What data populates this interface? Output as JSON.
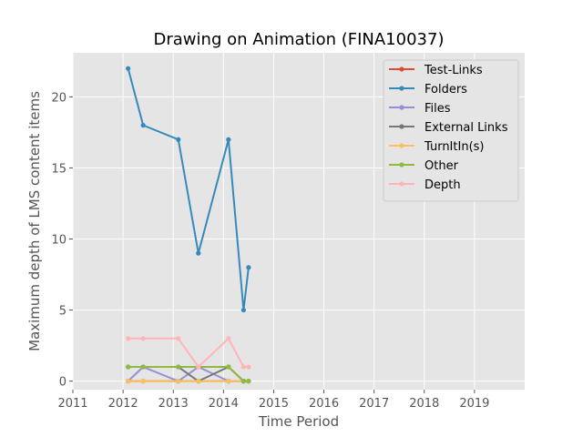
{
  "chart_data": {
    "type": "line",
    "title": "Drawing on Animation (FINA10037)",
    "xlabel": "Time Period",
    "ylabel": "Maximum depth of LMS content items",
    "xlim": [
      2011,
      2020
    ],
    "ylim": [
      -0.6,
      23.1
    ],
    "x_ticks": [
      2011,
      2012,
      2013,
      2014,
      2015,
      2016,
      2017,
      2018,
      2019
    ],
    "x_tick_labels": [
      "2011",
      "2012",
      "2013",
      "2014",
      "2015",
      "2016",
      "2017",
      "2018",
      "2019"
    ],
    "y_ticks": [
      0,
      5,
      10,
      15,
      20
    ],
    "y_tick_labels": [
      "0",
      "5",
      "10",
      "15",
      "20"
    ],
    "grid": true,
    "legend_position": "top-right",
    "x": [
      2012.1,
      2012.4,
      2013.1,
      2013.5,
      2014.1,
      2014.4,
      2014.5
    ],
    "series": [
      {
        "name": "Test-Links",
        "color": "#E24A33",
        "values": [
          0,
          0,
          0,
          0,
          0,
          0,
          0
        ]
      },
      {
        "name": "Folders",
        "color": "#348ABD",
        "values": [
          22,
          18,
          17,
          9,
          17,
          5,
          8
        ]
      },
      {
        "name": "Files",
        "color": "#988ED5",
        "values": [
          0,
          1,
          0,
          1,
          0,
          0,
          0
        ]
      },
      {
        "name": "External Links",
        "color": "#777777",
        "values": [
          1,
          1,
          1,
          0,
          1,
          0,
          0
        ]
      },
      {
        "name": "TurnItIn(s)",
        "color": "#FBC15E",
        "values": [
          0,
          0,
          0,
          0,
          0,
          0,
          0
        ]
      },
      {
        "name": "Other",
        "color": "#8EBA42",
        "values": [
          1,
          1,
          1,
          1,
          1,
          0,
          0
        ]
      },
      {
        "name": "Depth",
        "color": "#FFB5B8",
        "values": [
          3,
          3,
          3,
          1,
          3,
          1,
          1
        ]
      }
    ]
  }
}
